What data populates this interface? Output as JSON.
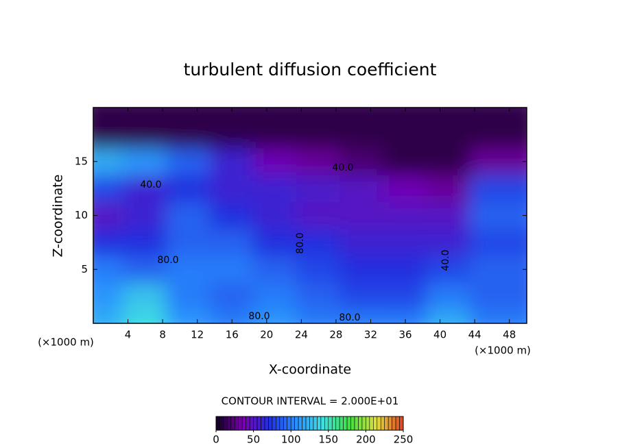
{
  "chart_data": {
    "type": "field",
    "title": "turbulent diffusion coefficient",
    "xlabel": "X-coordinate",
    "ylabel": "Z-coordinate",
    "x_unit": "(×1000 m)",
    "x_unit_right": "(×1000 m)",
    "xlim": [
      0,
      50
    ],
    "ylim": [
      0,
      20
    ],
    "xticks": [
      4,
      8,
      12,
      16,
      20,
      24,
      28,
      32,
      36,
      40,
      44,
      48
    ],
    "yticks": [
      5,
      10,
      15
    ],
    "values": [
      [
        120,
        140,
        110,
        100,
        110,
        100,
        100,
        100,
        120,
        100
      ],
      [
        110,
        130,
        100,
        90,
        100,
        90,
        80,
        80,
        100,
        90
      ],
      [
        100,
        90,
        100,
        100,
        90,
        80,
        70,
        70,
        80,
        90
      ],
      [
        70,
        70,
        90,
        90,
        70,
        70,
        60,
        60,
        60,
        80
      ],
      [
        50,
        60,
        90,
        70,
        60,
        50,
        50,
        50,
        50,
        90
      ],
      [
        80,
        60,
        70,
        60,
        60,
        55,
        50,
        40,
        30,
        80
      ],
      [
        120,
        110,
        90,
        60,
        40,
        30,
        20,
        10,
        10,
        30
      ],
      [
        10,
        10,
        10,
        10,
        10,
        10,
        10,
        10,
        10,
        10
      ]
    ],
    "contour_labels": [
      "80.0",
      "80.0",
      "40.0",
      "80.0",
      "40.0",
      "80.0",
      "40.0"
    ],
    "contour_interval": "CONTOUR INTERVAL = 2.000E+01",
    "colormap": [
      "#100020",
      "#7a00b0",
      "#2030e0",
      "#2a90ff",
      "#40e0e0",
      "#40e040",
      "#e0e040",
      "#e04020"
    ],
    "clim": [
      0,
      250
    ],
    "cticks": [
      0,
      50,
      100,
      150,
      200,
      250
    ]
  }
}
